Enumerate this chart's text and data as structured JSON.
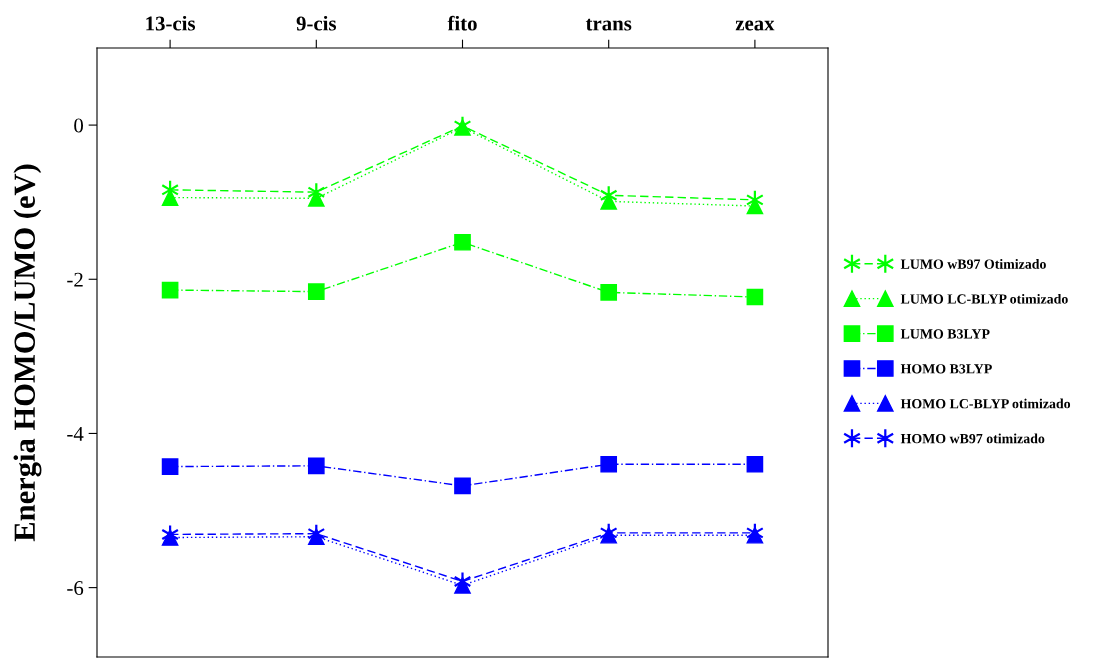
{
  "chart_data": {
    "type": "line",
    "ylabel": "Energia HOMO/LUMO (eV)",
    "categories": [
      "13-cis",
      "9-cis",
      "fito",
      "trans",
      "zeax"
    ],
    "ylim": [
      -6.9,
      1
    ],
    "yticks": [
      {
        "value": 0,
        "label": "0"
      },
      {
        "value": -2,
        "label": "-2"
      },
      {
        "value": -4,
        "label": "-4"
      },
      {
        "value": -6,
        "label": "-6"
      }
    ],
    "grid": false,
    "legend": "right",
    "series": [
      {
        "name": "LUMO wB97 Otimizado",
        "color": "#00ff00",
        "marker": "cross",
        "line_style": "dashed",
        "values": [
          -0.84,
          -0.87,
          -0.01,
          -0.91,
          -0.97
        ]
      },
      {
        "name": "LUMO LC-BLYP otimizado",
        "color": "#00ff00",
        "marker": "triangle",
        "line_style": "dotted",
        "values": [
          -0.94,
          -0.95,
          -0.03,
          -0.99,
          -1.05
        ]
      },
      {
        "name": "LUMO B3LYP",
        "color": "#00ff00",
        "marker": "square",
        "line_style": "dashdot",
        "values": [
          -2.14,
          -2.16,
          -1.52,
          -2.17,
          -2.23
        ]
      },
      {
        "name": "HOMO B3LYP",
        "color": "#0000ff",
        "marker": "square",
        "line_style": "dashdot",
        "values": [
          -4.43,
          -4.42,
          -4.68,
          -4.4,
          -4.4
        ]
      },
      {
        "name": "HOMO LC-BLYP otimizado",
        "color": "#0000ff",
        "marker": "triangle",
        "line_style": "dotted",
        "values": [
          -5.35,
          -5.34,
          -5.97,
          -5.32,
          -5.32
        ]
      },
      {
        "name": "HOMO wB97 otimizado",
        "color": "#0000ff",
        "marker": "cross",
        "line_style": "dashed",
        "values": [
          -5.31,
          -5.3,
          -5.92,
          -5.29,
          -5.29
        ]
      }
    ]
  }
}
